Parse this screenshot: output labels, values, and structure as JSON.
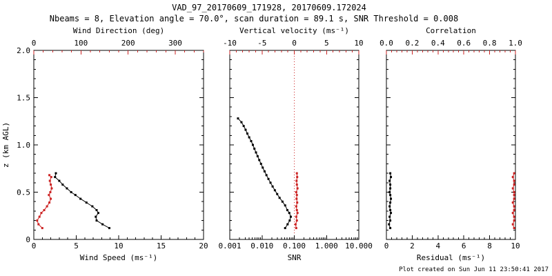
{
  "header": {
    "title": "VAD_97_20170609_171928, 20170609.172024",
    "subtitle": "Nbeams = 8, Elevation angle = 70.0°, scan duration = 89.1 s, SNR Threshold = 0.008"
  },
  "footer": {
    "created": "Plot created on Sun Jun 11 23:50:41 2017"
  },
  "colors": {
    "axis_red": "#cc2222",
    "black": "#000000"
  },
  "chart_data": [
    {
      "name": "wind-panel",
      "type": "line",
      "ylabel": "z (km AGL)",
      "ylim": [
        0,
        2
      ],
      "yticks": [
        0,
        0.5,
        1.0,
        1.5,
        2.0
      ],
      "ytick_labels": [
        "0",
        "0.5",
        "1.0",
        "1.5",
        "2.0"
      ],
      "bottom_axis": {
        "label": "Wind Speed (ms⁻¹)",
        "lim": [
          0,
          20
        ],
        "ticks": [
          0,
          5,
          10,
          15,
          20
        ],
        "tick_labels": [
          "0",
          "5",
          "10",
          "15",
          "20"
        ],
        "scale": "linear",
        "color": "#000000"
      },
      "top_axis": {
        "label": "Wind Direction (deg)",
        "lim": [
          0,
          360
        ],
        "ticks": [
          0,
          100,
          200,
          300
        ],
        "tick_labels": [
          "0",
          "100",
          "200",
          "300"
        ],
        "scale": "linear",
        "color": "#cc2222"
      },
      "series": [
        {
          "name": "wind_speed",
          "axis": "bottom",
          "color": "#000000",
          "z": [
            0.12,
            0.16,
            0.2,
            0.24,
            0.28,
            0.31,
            0.35,
            0.39,
            0.43,
            0.47,
            0.5,
            0.54,
            0.58,
            0.62,
            0.66,
            0.7
          ],
          "values": [
            8.9,
            8.1,
            7.4,
            7.3,
            7.6,
            7.4,
            6.9,
            6.2,
            5.5,
            4.9,
            4.4,
            3.9,
            3.4,
            3.0,
            2.5,
            2.6
          ]
        },
        {
          "name": "wind_direction",
          "axis": "top",
          "color": "#cc2222",
          "z": [
            0.12,
            0.16,
            0.2,
            0.24,
            0.28,
            0.31,
            0.35,
            0.39,
            0.43,
            0.47,
            0.5,
            0.54,
            0.58,
            0.62,
            0.66,
            0.68
          ],
          "values": [
            18,
            10,
            7,
            12,
            16,
            22,
            28,
            33,
            36,
            32,
            35,
            38,
            36,
            34,
            37,
            33
          ]
        }
      ]
    },
    {
      "name": "snr-panel",
      "type": "line",
      "ylabel": "",
      "ylim": [
        0,
        2
      ],
      "yticks": [
        0,
        0.5,
        1.0,
        1.5,
        2.0
      ],
      "bottom_axis": {
        "label": "SNR",
        "lim": [
          0.001,
          10
        ],
        "ticks": [
          0.001,
          0.01,
          0.1,
          1,
          10
        ],
        "tick_labels": [
          "0.001",
          "0.010",
          "0.100",
          "1.000",
          "10.000"
        ],
        "scale": "log",
        "color": "#000000"
      },
      "top_axis": {
        "label": "Vertical velocity (ms⁻¹)",
        "lim": [
          -10,
          10
        ],
        "ticks": [
          -10,
          -5,
          0,
          5,
          10
        ],
        "tick_labels": [
          "-10",
          "-5",
          "0",
          "5",
          "10"
        ],
        "scale": "linear",
        "color": "#cc2222"
      },
      "zero_line": {
        "axis": "top",
        "value": 0,
        "style": "dotted",
        "color": "#cc2222"
      },
      "series": [
        {
          "name": "snr",
          "axis": "bottom",
          "color": "#000000",
          "z": [
            1.28,
            1.24,
            1.2,
            1.16,
            1.12,
            1.08,
            1.04,
            1.0,
            0.96,
            0.92,
            0.88,
            0.84,
            0.8,
            0.76,
            0.72,
            0.68,
            0.64,
            0.6,
            0.56,
            0.52,
            0.48,
            0.44,
            0.4,
            0.36,
            0.31,
            0.28,
            0.24,
            0.2,
            0.16,
            0.12
          ],
          "values": [
            0.0018,
            0.0023,
            0.0027,
            0.0031,
            0.0035,
            0.004,
            0.0046,
            0.0052,
            0.0058,
            0.0065,
            0.0073,
            0.0082,
            0.0093,
            0.0105,
            0.012,
            0.0137,
            0.0158,
            0.0183,
            0.0213,
            0.025,
            0.0295,
            0.035,
            0.043,
            0.052,
            0.061,
            0.07,
            0.078,
            0.072,
            0.062,
            0.052
          ]
        },
        {
          "name": "vertical_velocity",
          "axis": "top",
          "color": "#cc2222",
          "z": [
            0.12,
            0.16,
            0.2,
            0.24,
            0.28,
            0.31,
            0.35,
            0.39,
            0.43,
            0.47,
            0.5,
            0.54,
            0.58,
            0.62,
            0.66,
            0.7
          ],
          "values": [
            0.3,
            0.2,
            0.4,
            0.3,
            0.5,
            0.4,
            0.3,
            0.45,
            0.35,
            0.4,
            0.3,
            0.5,
            0.4,
            0.35,
            0.45,
            0.4
          ]
        }
      ]
    },
    {
      "name": "residual-panel",
      "type": "line",
      "ylabel": "",
      "ylim": [
        0,
        2
      ],
      "yticks": [
        0,
        0.5,
        1.0,
        1.5,
        2.0
      ],
      "bottom_axis": {
        "label": "Residual (ms⁻¹)",
        "lim": [
          0,
          10
        ],
        "ticks": [
          0,
          2,
          4,
          6,
          8,
          10
        ],
        "tick_labels": [
          "0",
          "2",
          "4",
          "6",
          "8",
          "10"
        ],
        "scale": "linear",
        "color": "#000000"
      },
      "top_axis": {
        "label": "Correlation",
        "lim": [
          0,
          1
        ],
        "ticks": [
          0,
          0.2,
          0.4,
          0.6,
          0.8,
          1.0
        ],
        "tick_labels": [
          "0.0",
          "0.2",
          "0.4",
          "0.6",
          "0.8",
          "1.0"
        ],
        "scale": "linear",
        "color": "#cc2222"
      },
      "series": [
        {
          "name": "residual",
          "axis": "bottom",
          "color": "#000000",
          "z": [
            0.12,
            0.16,
            0.2,
            0.24,
            0.28,
            0.31,
            0.35,
            0.39,
            0.43,
            0.47,
            0.5,
            0.54,
            0.58,
            0.62,
            0.66,
            0.7
          ],
          "values": [
            0.3,
            0.2,
            0.3,
            0.25,
            0.35,
            0.3,
            0.25,
            0.3,
            0.35,
            0.3,
            0.25,
            0.3,
            0.3,
            0.25,
            0.35,
            0.3
          ]
        },
        {
          "name": "correlation",
          "axis": "top",
          "color": "#cc2222",
          "z": [
            0.12,
            0.16,
            0.2,
            0.24,
            0.28,
            0.31,
            0.35,
            0.39,
            0.43,
            0.47,
            0.5,
            0.54,
            0.58,
            0.62,
            0.66,
            0.7
          ],
          "values": [
            0.99,
            0.98,
            0.99,
            0.99,
            0.98,
            0.99,
            0.99,
            0.98,
            0.99,
            0.99,
            0.99,
            0.98,
            0.99,
            0.99,
            0.98,
            0.99
          ]
        }
      ]
    }
  ]
}
